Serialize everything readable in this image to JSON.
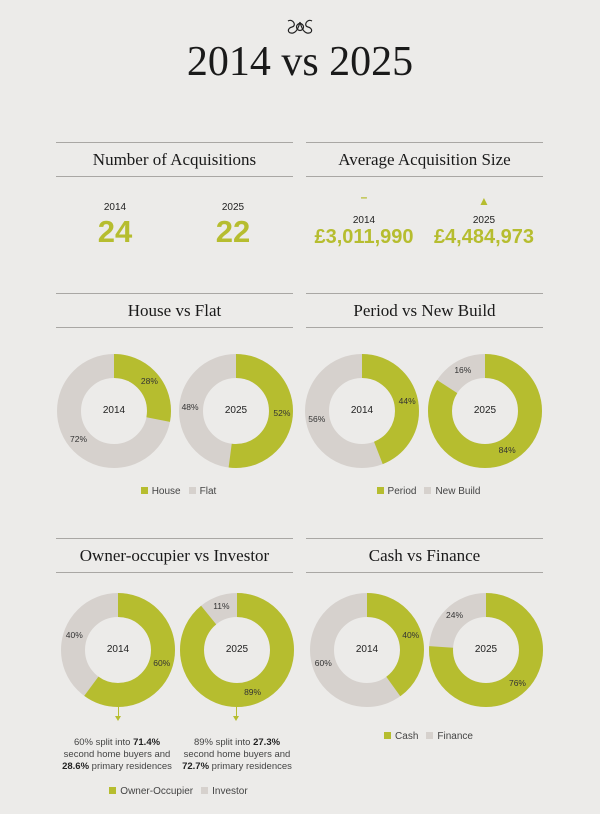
{
  "title": "2014 vs 2025",
  "logo": "monogram",
  "colors": {
    "primary": "#b6bd2f",
    "secondary": "#d6d1cd",
    "background": "#ecebe9"
  },
  "acquisitions": {
    "title": "Number of Acquisitions",
    "items": [
      {
        "year": "2014",
        "value": "24"
      },
      {
        "year": "2025",
        "value": "22"
      }
    ]
  },
  "avg_size": {
    "title": "Average Acquisition Size",
    "items": [
      {
        "year": "2014",
        "value": "£3,011,990",
        "trend": "flat",
        "trend_glyph": "–"
      },
      {
        "year": "2025",
        "value": "£4,484,973",
        "trend": "up",
        "trend_glyph": "▲"
      }
    ]
  },
  "chart_data": [
    {
      "type": "pie",
      "title": "House vs Flat",
      "legend": [
        "House",
        "Flat"
      ],
      "donuts": [
        {
          "label": "2014",
          "values": [
            28,
            72
          ]
        },
        {
          "label": "2025",
          "values": [
            52,
            48
          ]
        }
      ]
    },
    {
      "type": "pie",
      "title": "Period vs New Build",
      "legend": [
        "Period",
        "New Build"
      ],
      "donuts": [
        {
          "label": "2014",
          "values": [
            44,
            56
          ]
        },
        {
          "label": "2025",
          "values": [
            84,
            16
          ]
        }
      ]
    },
    {
      "type": "pie",
      "title": "Owner-occupier vs Investor",
      "legend": [
        "Owner-Occupier",
        "Investor"
      ],
      "donuts": [
        {
          "label": "2014",
          "values": [
            60,
            40
          ]
        },
        {
          "label": "2025",
          "values": [
            89,
            11
          ]
        }
      ]
    },
    {
      "type": "pie",
      "title": "Cash vs Finance",
      "legend": [
        "Cash",
        "Finance"
      ],
      "donuts": [
        {
          "label": "2014",
          "values": [
            40,
            60
          ]
        },
        {
          "label": "2025",
          "values": [
            76,
            24
          ]
        }
      ]
    }
  ],
  "notes": [
    {
      "a": "60% split into ",
      "b": "71.4%",
      "c": " second home buyers and ",
      "d": "28.6%",
      "e": " primary residences"
    },
    {
      "a": "89% split into ",
      "b": "27.3%",
      "c": " second home buyers and ",
      "d": "72.7%",
      "e": " primary residences"
    }
  ]
}
